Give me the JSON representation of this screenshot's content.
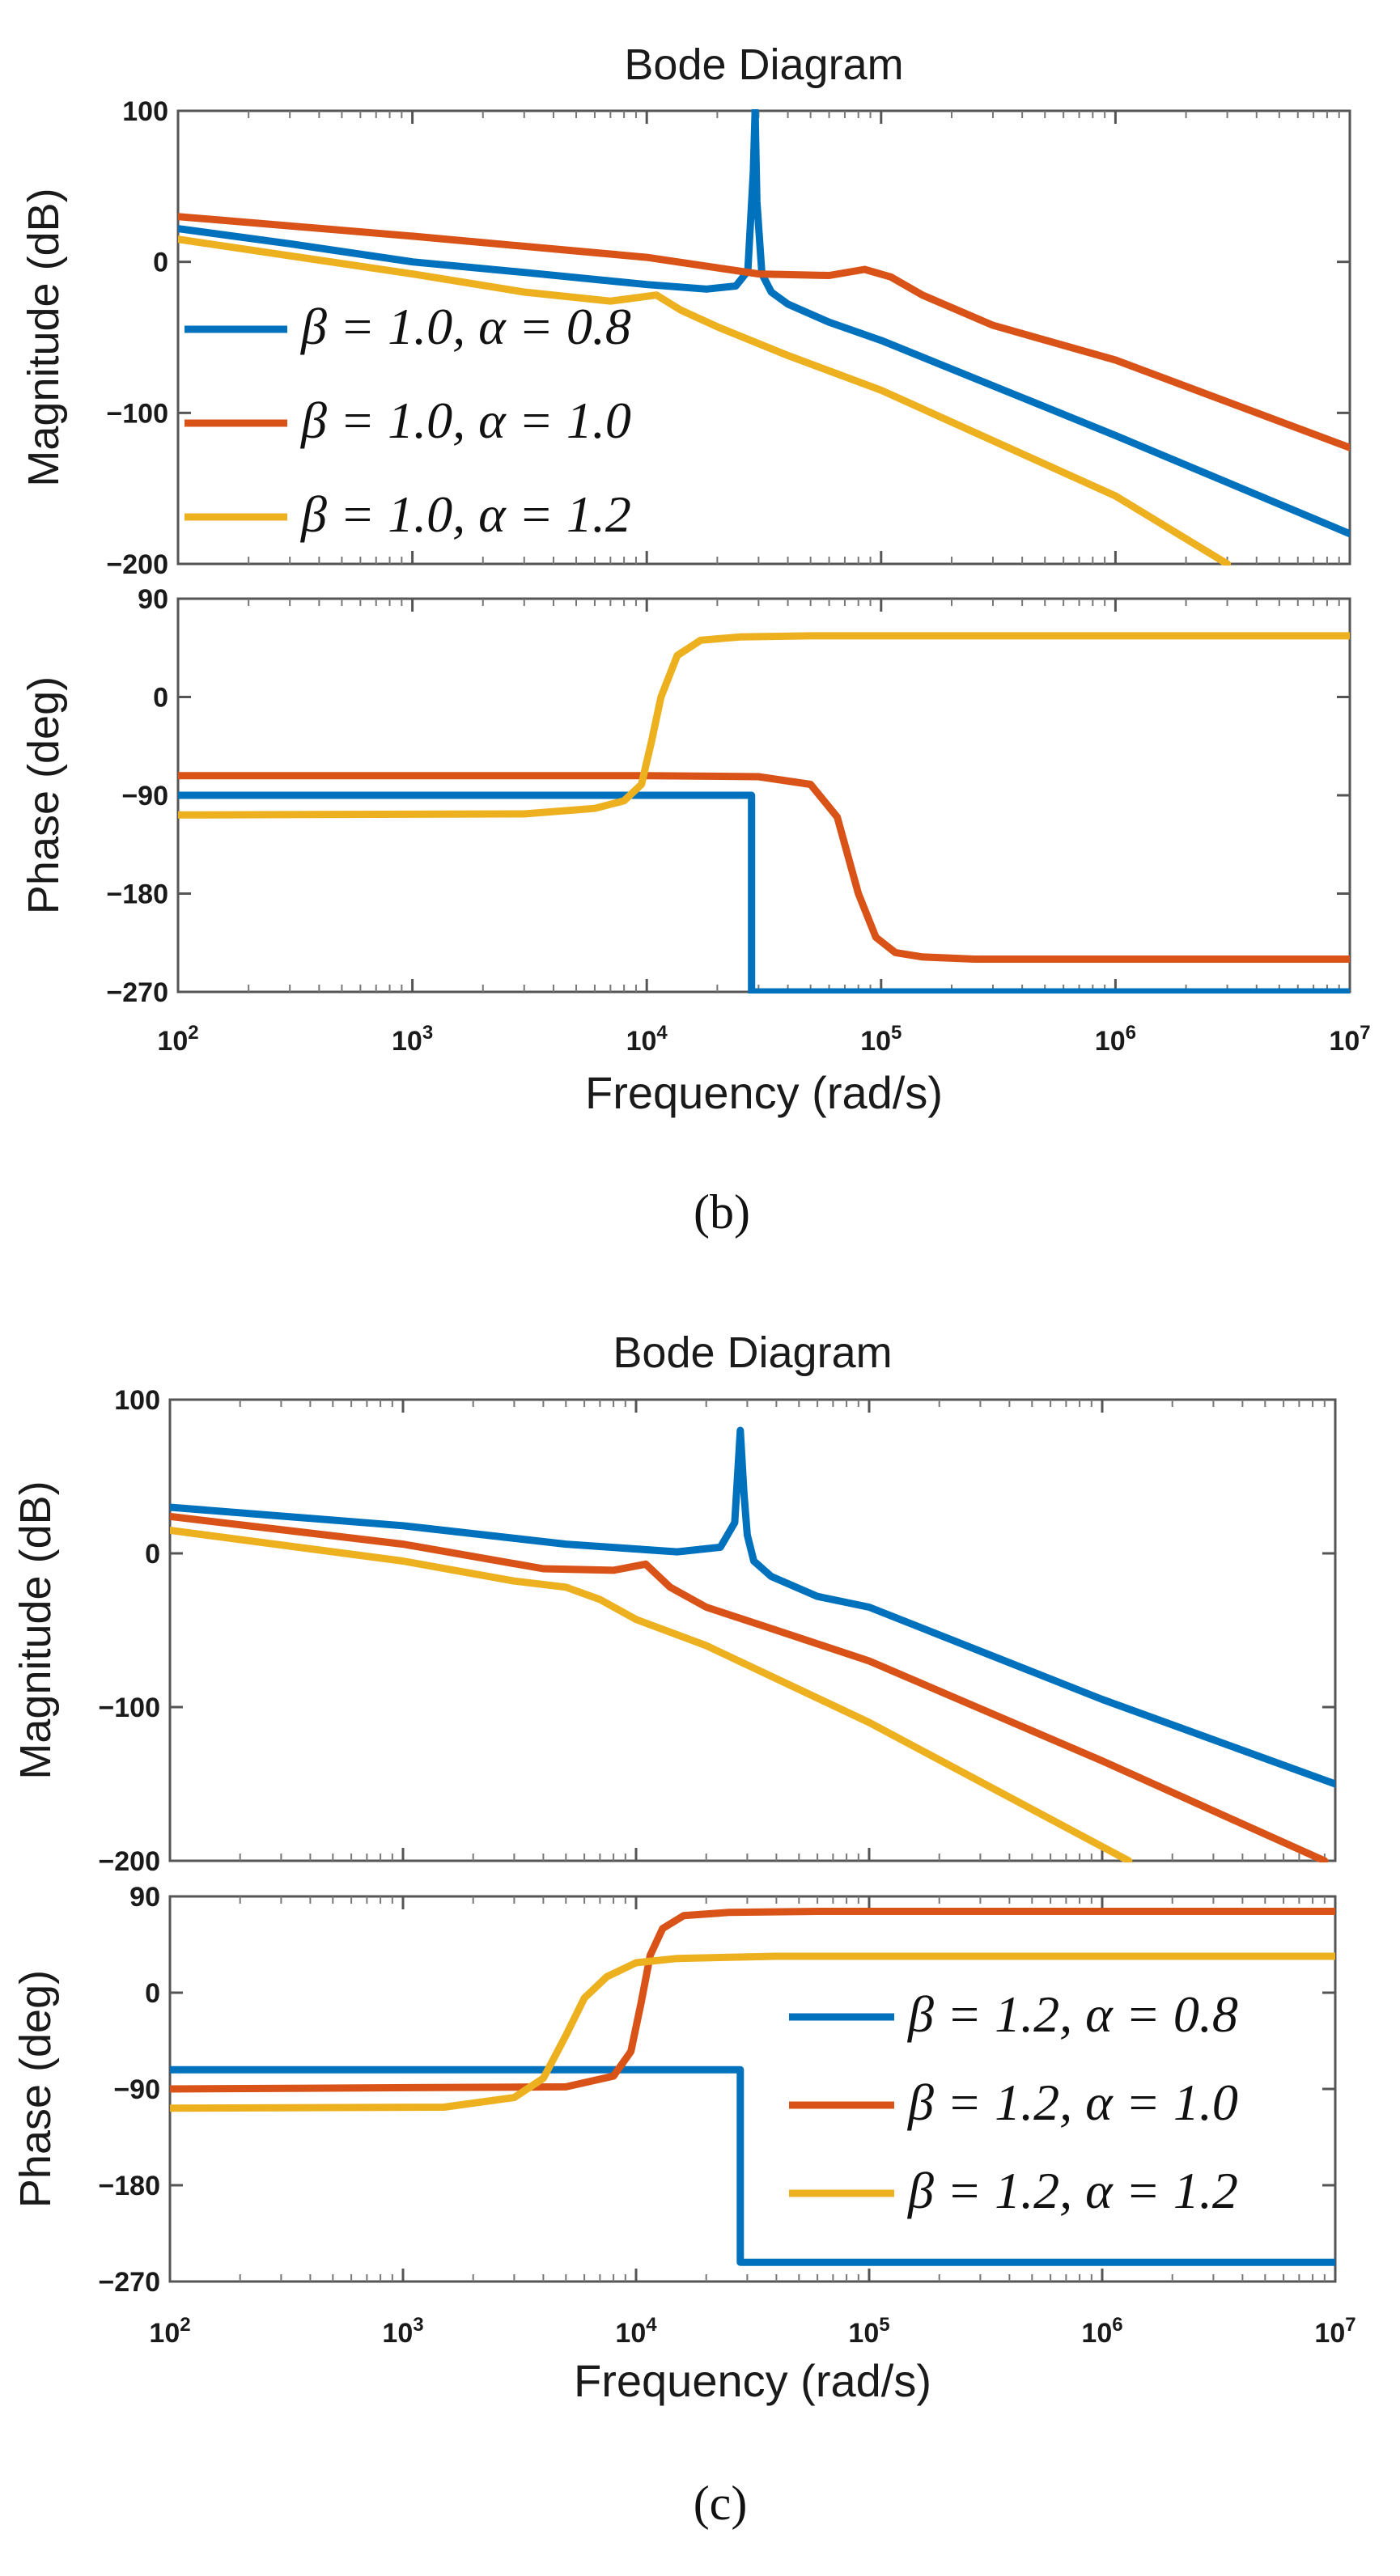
{
  "figure": {
    "captions": [
      "(b)",
      "(c)"
    ]
  },
  "chart_data": [
    {
      "type": "line",
      "panel": "b",
      "title": "Bode Diagram",
      "xlabel": "Frequency  (rad/s)",
      "xscale": "log",
      "xlim": [
        100,
        10000000
      ],
      "xticks": [
        {
          "base": "10",
          "exp": "2"
        },
        {
          "base": "10",
          "exp": "3"
        },
        {
          "base": "10",
          "exp": "4"
        },
        {
          "base": "10",
          "exp": "5"
        },
        {
          "base": "10",
          "exp": "6"
        },
        {
          "base": "10",
          "exp": "7"
        }
      ],
      "legend_location": "magnitude subplot, left",
      "magnitude": {
        "ylabel": "Magnitude (dB)",
        "ylim": [
          -200,
          100
        ],
        "yticks": [
          "100",
          "0",
          "-100",
          "-200"
        ],
        "series": [
          {
            "name": "β = 1.0, α = 0.8",
            "color": "#0072BD",
            "x": [
              100,
              300,
              1000,
              3000,
              10000,
              18000,
              24000,
              27000,
              28500,
              29000,
              29500,
              31000,
              34000,
              40000,
              60000,
              100000,
              1000000,
              10000000
            ],
            "y": [
              22,
              12,
              0,
              -7,
              -15,
              -18,
              -16,
              -6,
              60,
              100,
              40,
              -8,
              -20,
              -28,
              -40,
              -52,
              -115,
              -180
            ]
          },
          {
            "name": "β = 1.0, α = 1.0",
            "color": "#D95319",
            "x": [
              100,
              1000,
              10000,
              30000,
              60000,
              85000,
              110000,
              150000,
              300000,
              1000000,
              10000000
            ],
            "y": [
              30,
              17,
              3,
              -8,
              -9,
              -5,
              -10,
              -22,
              -42,
              -65,
              -123
            ]
          },
          {
            "name": "β = 1.0, α = 1.2",
            "color": "#EDB120",
            "x": [
              100,
              300,
              1000,
              3000,
              7000,
              11000,
              14000,
              20000,
              40000,
              100000,
              1000000,
              3000000
            ],
            "y": [
              15,
              4,
              -8,
              -20,
              -26,
              -22,
              -32,
              -43,
              -62,
              -85,
              -155,
              -200
            ]
          }
        ]
      },
      "phase": {
        "ylabel": "Phase (deg)",
        "ylim": [
          -270,
          90
        ],
        "yticks": [
          "90",
          "0",
          "-90",
          "-180",
          "-270"
        ],
        "series": [
          {
            "name": "β = 1.0, α = 0.8",
            "color": "#0072BD",
            "x": [
              100,
              28000,
              28000,
              10000000
            ],
            "y": [
              -90,
              -90,
              -270,
              -270
            ]
          },
          {
            "name": "β = 1.0, α = 1.0",
            "color": "#D95319",
            "x": [
              100,
              10000,
              30000,
              50000,
              65000,
              80000,
              95000,
              115000,
              150000,
              250000,
              1000000,
              10000000
            ],
            "y": [
              -72,
              -72,
              -73,
              -80,
              -110,
              -180,
              -220,
              -234,
              -238,
              -240,
              -240,
              -240
            ]
          },
          {
            "name": "β = 1.0, α = 1.2",
            "color": "#EDB120",
            "x": [
              100,
              3000,
              6000,
              8000,
              9500,
              10500,
              11500,
              13500,
              17000,
              25000,
              50000,
              10000000
            ],
            "y": [
              -108,
              -107,
              -102,
              -95,
              -80,
              -40,
              0,
              38,
              52,
              55,
              56,
              56
            ]
          }
        ]
      }
    },
    {
      "type": "line",
      "panel": "c",
      "title": "Bode Diagram",
      "xlabel": "Frequency  (rad/s)",
      "xscale": "log",
      "xlim": [
        100,
        10000000
      ],
      "xticks": [
        {
          "base": "10",
          "exp": "2"
        },
        {
          "base": "10",
          "exp": "3"
        },
        {
          "base": "10",
          "exp": "4"
        },
        {
          "base": "10",
          "exp": "5"
        },
        {
          "base": "10",
          "exp": "6"
        },
        {
          "base": "10",
          "exp": "7"
        }
      ],
      "legend_location": "phase subplot, right",
      "magnitude": {
        "ylabel": "Magnitude (dB)",
        "ylim": [
          -200,
          100
        ],
        "yticks": [
          "100",
          "0",
          "-100",
          "-200"
        ],
        "series": [
          {
            "name": "β = 1.2, α = 0.8",
            "color": "#0072BD",
            "x": [
              100,
              1000,
              5000,
              15000,
              23000,
              26500,
              28000,
              29000,
              30000,
              32000,
              38000,
              60000,
              100000,
              1000000,
              10000000
            ],
            "y": [
              30,
              18,
              6,
              1,
              4,
              20,
              80,
              40,
              12,
              -5,
              -15,
              -28,
              -35,
              -95,
              -150
            ]
          },
          {
            "name": "β = 1.2, α = 1.0",
            "color": "#D95319",
            "x": [
              100,
              1000,
              4000,
              8000,
              11000,
              14000,
              20000,
              40000,
              100000,
              1000000,
              9000000
            ],
            "y": [
              24,
              6,
              -10,
              -11,
              -7,
              -22,
              -35,
              -50,
              -70,
              -135,
              -200
            ]
          },
          {
            "name": "β = 1.2, α = 1.2",
            "color": "#EDB120",
            "x": [
              100,
              1000,
              3000,
              5000,
              7000,
              10000,
              20000,
              100000,
              1300000
            ],
            "y": [
              15,
              -5,
              -18,
              -22,
              -30,
              -43,
              -60,
              -110,
              -200
            ]
          }
        ]
      },
      "phase": {
        "ylabel": "Phase (deg)",
        "ylim": [
          -270,
          90
        ],
        "yticks": [
          "90",
          "0",
          "-90",
          "-180",
          "-270"
        ],
        "series": [
          {
            "name": "β = 1.2, α = 0.8",
            "color": "#0072BD",
            "x": [
              100,
              28000,
              28000,
              10000000
            ],
            "y": [
              -72,
              -72,
              -252,
              -252
            ]
          },
          {
            "name": "β = 1.2, α = 1.0",
            "color": "#D95319",
            "x": [
              100,
              5000,
              8000,
              9500,
              10500,
              11500,
              13000,
              16000,
              25000,
              60000,
              10000000
            ],
            "y": [
              -90,
              -88,
              -78,
              -55,
              -10,
              35,
              60,
              72,
              75,
              76,
              76
            ]
          },
          {
            "name": "β = 1.2, α = 1.2",
            "color": "#EDB120",
            "x": [
              100,
              1500,
              3000,
              4000,
              5000,
              6000,
              7500,
              10000,
              15000,
              40000,
              10000000
            ],
            "y": [
              -108,
              -107,
              -98,
              -80,
              -40,
              -5,
              15,
              28,
              32,
              34,
              34
            ]
          }
        ]
      }
    }
  ]
}
